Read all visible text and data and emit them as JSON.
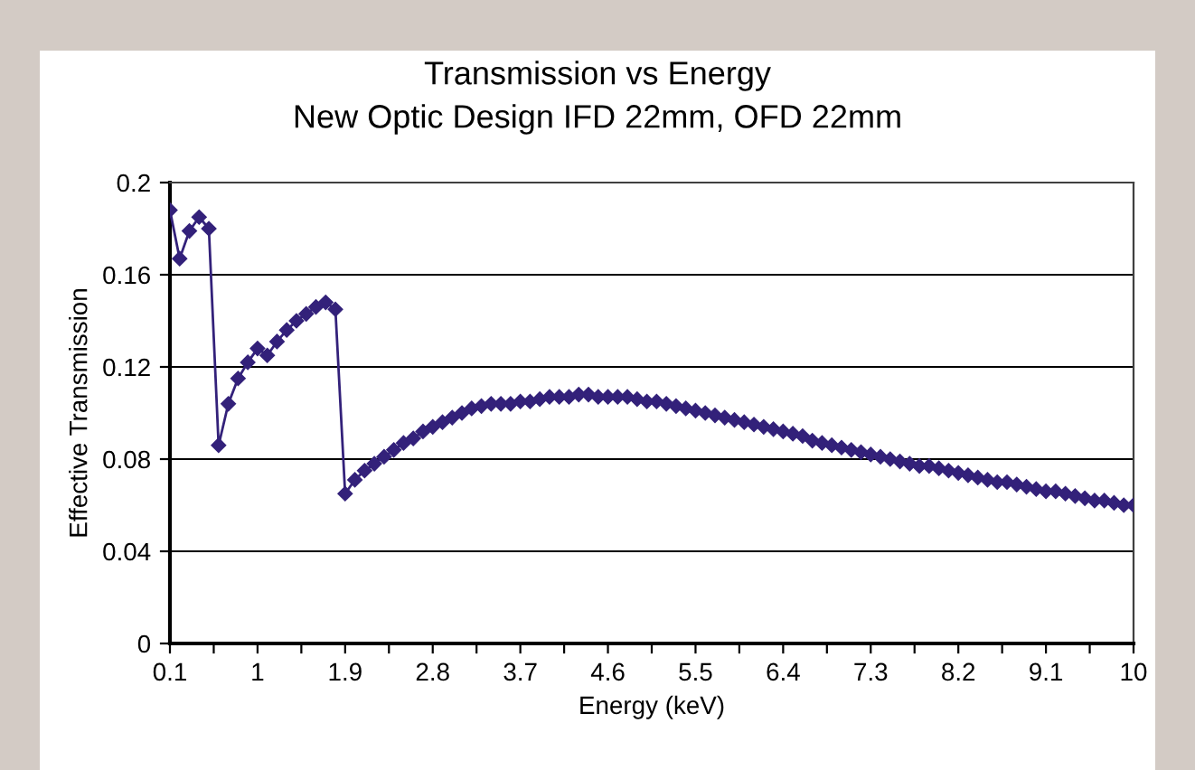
{
  "chart_data": {
    "type": "line",
    "title": "Transmission vs Energy",
    "subtitle": "New Optic Design IFD 22mm, OFD 22mm",
    "xlabel": "Energy (keV)",
    "ylabel": "Effective Transmission",
    "x": [
      0.1,
      0.2,
      0.3,
      0.4,
      0.5,
      0.6,
      0.7,
      0.8,
      0.9,
      1.0,
      1.1,
      1.2,
      1.3,
      1.4,
      1.5,
      1.6,
      1.7,
      1.8,
      1.9,
      2.0,
      2.1,
      2.2,
      2.3,
      2.4,
      2.5,
      2.6,
      2.7,
      2.8,
      2.9,
      3.0,
      3.1,
      3.2,
      3.3,
      3.4,
      3.5,
      3.6,
      3.7,
      3.8,
      3.9,
      4.0,
      4.1,
      4.2,
      4.3,
      4.4,
      4.5,
      4.6,
      4.7,
      4.8,
      4.9,
      5.0,
      5.1,
      5.2,
      5.3,
      5.4,
      5.5,
      5.6,
      5.7,
      5.8,
      5.9,
      6.0,
      6.1,
      6.2,
      6.3,
      6.4,
      6.5,
      6.6,
      6.7,
      6.8,
      6.9,
      7.0,
      7.1,
      7.2,
      7.3,
      7.4,
      7.5,
      7.6,
      7.7,
      7.8,
      7.9,
      8.0,
      8.1,
      8.2,
      8.3,
      8.4,
      8.5,
      8.6,
      8.7,
      8.8,
      8.9,
      9.0,
      9.1,
      9.2,
      9.3,
      9.4,
      9.5,
      9.6,
      9.7,
      9.8,
      9.9,
      10.0
    ],
    "series": [
      {
        "color": "#33217a",
        "values": [
          0.188,
          0.167,
          0.179,
          0.185,
          0.18,
          0.086,
          0.104,
          0.115,
          0.122,
          0.128,
          0.125,
          0.131,
          0.136,
          0.14,
          0.143,
          0.146,
          0.148,
          0.145,
          0.065,
          0.071,
          0.075,
          0.078,
          0.081,
          0.084,
          0.087,
          0.089,
          0.092,
          0.094,
          0.096,
          0.098,
          0.1,
          0.102,
          0.103,
          0.104,
          0.104,
          0.104,
          0.105,
          0.105,
          0.106,
          0.107,
          0.107,
          0.107,
          0.108,
          0.108,
          0.107,
          0.107,
          0.107,
          0.107,
          0.106,
          0.105,
          0.105,
          0.104,
          0.103,
          0.102,
          0.101,
          0.1,
          0.099,
          0.098,
          0.097,
          0.096,
          0.095,
          0.094,
          0.093,
          0.092,
          0.091,
          0.09,
          0.088,
          0.087,
          0.086,
          0.085,
          0.084,
          0.083,
          0.082,
          0.081,
          0.08,
          0.079,
          0.078,
          0.077,
          0.077,
          0.076,
          0.075,
          0.074,
          0.073,
          0.072,
          0.071,
          0.07,
          0.07,
          0.069,
          0.068,
          0.067,
          0.066,
          0.066,
          0.065,
          0.064,
          0.063,
          0.062,
          0.062,
          0.061,
          0.06,
          0.06
        ]
      }
    ],
    "xlim": [
      0.1,
      10
    ],
    "xticks": [
      0.1,
      {
        "value": 0.55,
        "label": null
      },
      1,
      {
        "value": 1.45,
        "label": null
      },
      1.9,
      {
        "value": 2.35,
        "label": null
      },
      2.8,
      {
        "value": 3.25,
        "label": null
      },
      3.7,
      {
        "value": 4.15,
        "label": null
      },
      4.6,
      {
        "value": 5.05,
        "label": null
      },
      5.5,
      {
        "value": 5.95,
        "label": null
      },
      6.4,
      {
        "value": 6.85,
        "label": null
      },
      7.3,
      {
        "value": 7.75,
        "label": null
      },
      8.2,
      {
        "value": 8.65,
        "label": null
      },
      9.1,
      {
        "value": 9.55,
        "label": null
      },
      10
    ],
    "ylim": [
      0,
      0.2
    ],
    "yticks": [
      0,
      0.04,
      0.08,
      0.12,
      0.16,
      0.2
    ],
    "grid": "y",
    "marker": "diamond",
    "line_style": "solid"
  }
}
